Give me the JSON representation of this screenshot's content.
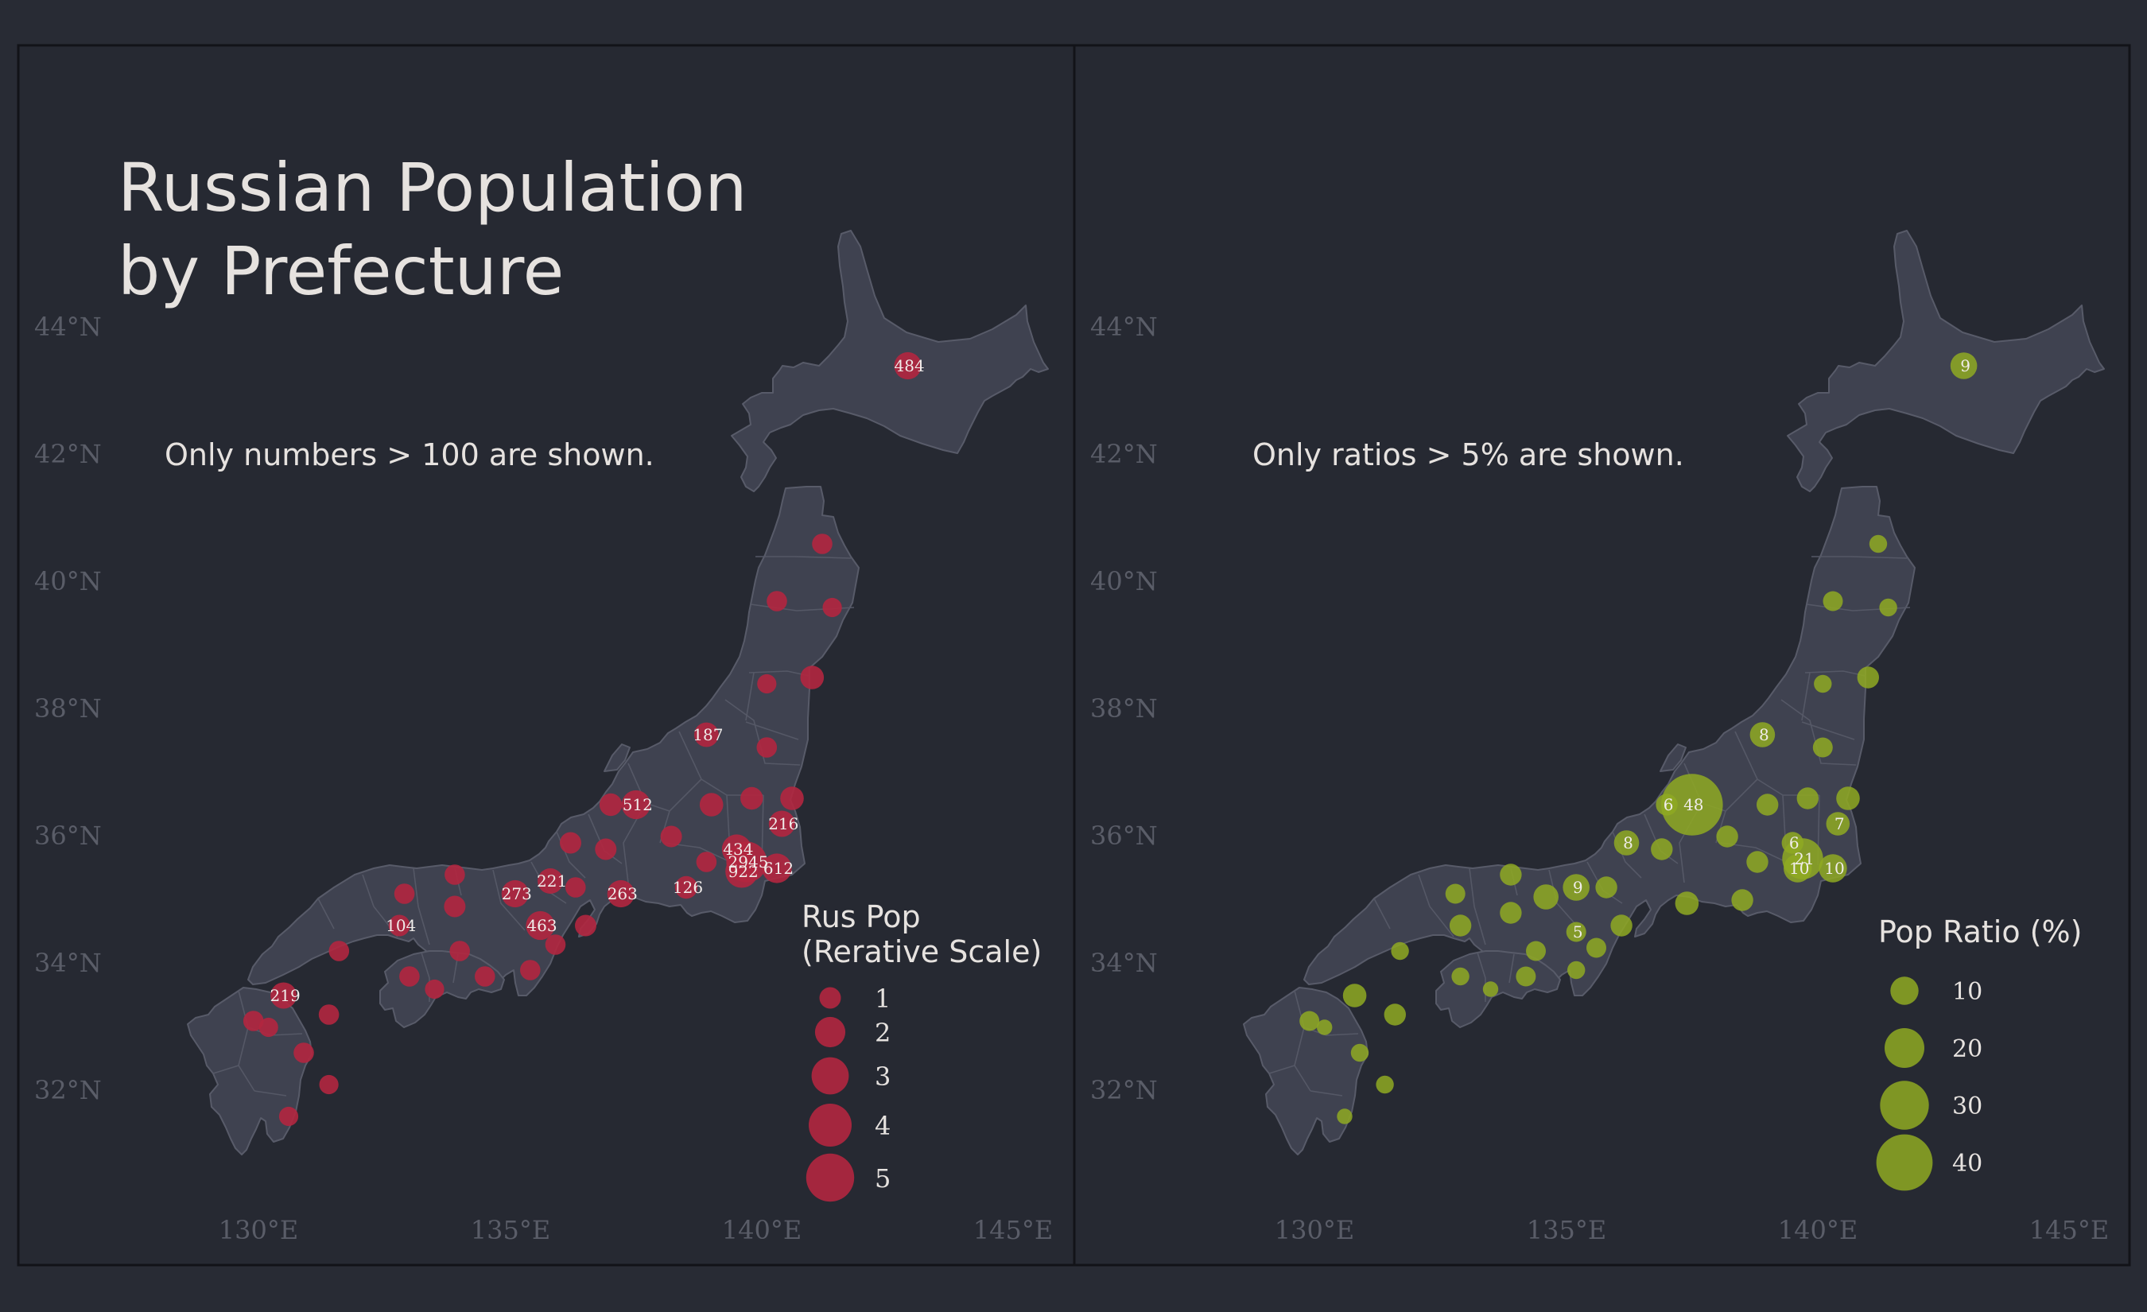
{
  "title_lines": [
    "Russian Population",
    "by Prefecture"
  ],
  "colors": {
    "background": "#282b34",
    "panel": "#262932",
    "land": "#3f4250",
    "red": "#b2263f",
    "green": "#8fa922",
    "tick": "#5a5d68",
    "text": "#e6e2df"
  },
  "axes": {
    "lat_ticks": [
      "44°N",
      "42°N",
      "40°N",
      "38°N",
      "36°N",
      "34°N",
      "32°N"
    ],
    "lon_ticks": [
      "130°E",
      "135°E",
      "140°E",
      "145°E"
    ]
  },
  "chart_data": [
    {
      "type": "scatter",
      "map": "Japan prefectures",
      "note": "Only numbers > 100 are shown.",
      "legend": {
        "title_lines": [
          "Rus Pop",
          "(Rerative Scale)"
        ],
        "items": [
          {
            "label": "1",
            "size": 1
          },
          {
            "label": "2",
            "size": 2
          },
          {
            "label": "3",
            "size": 3
          },
          {
            "label": "4",
            "size": 4
          },
          {
            "label": "5",
            "size": 5
          }
        ]
      },
      "points": [
        {
          "lon": 142.9,
          "lat": 43.4,
          "size": 1.6,
          "label": "484"
        },
        {
          "lon": 141.2,
          "lat": 40.6,
          "size": 0.9,
          "label": ""
        },
        {
          "lon": 140.3,
          "lat": 39.7,
          "size": 0.9,
          "label": ""
        },
        {
          "lon": 141.4,
          "lat": 39.6,
          "size": 0.8,
          "label": ""
        },
        {
          "lon": 141.0,
          "lat": 38.5,
          "size": 1.2,
          "label": ""
        },
        {
          "lon": 140.1,
          "lat": 38.4,
          "size": 0.8,
          "label": ""
        },
        {
          "lon": 140.1,
          "lat": 37.4,
          "size": 0.9,
          "label": ""
        },
        {
          "lon": 138.9,
          "lat": 37.6,
          "size": 1.3,
          "label": "187"
        },
        {
          "lon": 140.6,
          "lat": 36.6,
          "size": 1.2,
          "label": ""
        },
        {
          "lon": 139.8,
          "lat": 36.6,
          "size": 1.1,
          "label": ""
        },
        {
          "lon": 139.0,
          "lat": 36.5,
          "size": 1.2,
          "label": ""
        },
        {
          "lon": 137.0,
          "lat": 36.5,
          "size": 1.1,
          "label": ""
        },
        {
          "lon": 137.5,
          "lat": 36.5,
          "size": 1.8,
          "label": "512"
        },
        {
          "lon": 140.4,
          "lat": 36.2,
          "size": 1.5,
          "label": "216"
        },
        {
          "lon": 138.2,
          "lat": 36.0,
          "size": 1.0,
          "label": ""
        },
        {
          "lon": 136.2,
          "lat": 35.9,
          "size": 1.0,
          "label": ""
        },
        {
          "lon": 136.9,
          "lat": 35.8,
          "size": 1.0,
          "label": ""
        },
        {
          "lon": 139.5,
          "lat": 35.8,
          "size": 1.9,
          "label": "434"
        },
        {
          "lon": 139.7,
          "lat": 35.6,
          "size": 3.6,
          "label": "2945"
        },
        {
          "lon": 139.6,
          "lat": 35.45,
          "size": 2.3,
          "label": "922"
        },
        {
          "lon": 140.3,
          "lat": 35.5,
          "size": 1.9,
          "label": "612"
        },
        {
          "lon": 138.9,
          "lat": 35.6,
          "size": 0.9,
          "label": ""
        },
        {
          "lon": 138.5,
          "lat": 35.2,
          "size": 1.1,
          "label": "126"
        },
        {
          "lon": 137.2,
          "lat": 35.1,
          "size": 1.6,
          "label": "263"
        },
        {
          "lon": 135.8,
          "lat": 35.3,
          "size": 1.4,
          "label": "221"
        },
        {
          "lon": 135.1,
          "lat": 35.1,
          "size": 1.6,
          "label": "273"
        },
        {
          "lon": 136.3,
          "lat": 35.2,
          "size": 0.9,
          "label": ""
        },
        {
          "lon": 133.9,
          "lat": 35.4,
          "size": 0.9,
          "label": ""
        },
        {
          "lon": 132.9,
          "lat": 35.1,
          "size": 0.9,
          "label": ""
        },
        {
          "lon": 133.9,
          "lat": 34.9,
          "size": 1.0,
          "label": ""
        },
        {
          "lon": 135.6,
          "lat": 34.6,
          "size": 1.8,
          "label": "463"
        },
        {
          "lon": 136.5,
          "lat": 34.6,
          "size": 1.0,
          "label": ""
        },
        {
          "lon": 132.8,
          "lat": 34.6,
          "size": 1.0,
          "label": "104"
        },
        {
          "lon": 135.9,
          "lat": 34.3,
          "size": 0.9,
          "label": ""
        },
        {
          "lon": 131.6,
          "lat": 34.2,
          "size": 0.9,
          "label": ""
        },
        {
          "lon": 134.0,
          "lat": 34.2,
          "size": 0.9,
          "label": ""
        },
        {
          "lon": 133.0,
          "lat": 33.8,
          "size": 0.9,
          "label": ""
        },
        {
          "lon": 134.5,
          "lat": 33.8,
          "size": 0.9,
          "label": ""
        },
        {
          "lon": 133.5,
          "lat": 33.6,
          "size": 0.8,
          "label": ""
        },
        {
          "lon": 135.4,
          "lat": 33.9,
          "size": 0.9,
          "label": ""
        },
        {
          "lon": 130.5,
          "lat": 33.5,
          "size": 1.5,
          "label": "219"
        },
        {
          "lon": 131.4,
          "lat": 33.2,
          "size": 0.9,
          "label": ""
        },
        {
          "lon": 129.9,
          "lat": 33.1,
          "size": 0.9,
          "label": ""
        },
        {
          "lon": 130.2,
          "lat": 33.0,
          "size": 0.8,
          "label": ""
        },
        {
          "lon": 130.9,
          "lat": 32.6,
          "size": 0.9,
          "label": ""
        },
        {
          "lon": 131.4,
          "lat": 32.1,
          "size": 0.8,
          "label": ""
        },
        {
          "lon": 130.6,
          "lat": 31.6,
          "size": 0.8,
          "label": ""
        }
      ]
    },
    {
      "type": "scatter",
      "map": "Japan prefectures",
      "note": "Only ratios > 5% are shown.",
      "legend": {
        "title_lines": [
          "Pop Ratio (%)"
        ],
        "items": [
          {
            "label": "10",
            "size": 10
          },
          {
            "label": "20",
            "size": 20
          },
          {
            "label": "30",
            "size": 30
          },
          {
            "label": "40",
            "size": 40
          }
        ]
      },
      "points": [
        {
          "lon": 142.9,
          "lat": 43.4,
          "size": 9,
          "label": "9"
        },
        {
          "lon": 141.2,
          "lat": 40.6,
          "size": 4,
          "label": ""
        },
        {
          "lon": 140.3,
          "lat": 39.7,
          "size": 5,
          "label": ""
        },
        {
          "lon": 141.4,
          "lat": 39.6,
          "size": 4,
          "label": ""
        },
        {
          "lon": 141.0,
          "lat": 38.5,
          "size": 6,
          "label": ""
        },
        {
          "lon": 140.1,
          "lat": 38.4,
          "size": 4,
          "label": ""
        },
        {
          "lon": 140.1,
          "lat": 37.4,
          "size": 5,
          "label": ""
        },
        {
          "lon": 138.9,
          "lat": 37.6,
          "size": 8,
          "label": "8"
        },
        {
          "lon": 140.6,
          "lat": 36.6,
          "size": 7,
          "label": ""
        },
        {
          "lon": 139.8,
          "lat": 36.6,
          "size": 6,
          "label": ""
        },
        {
          "lon": 139.0,
          "lat": 36.5,
          "size": 6,
          "label": ""
        },
        {
          "lon": 137.0,
          "lat": 36.5,
          "size": 6,
          "label": "6"
        },
        {
          "lon": 137.5,
          "lat": 36.5,
          "size": 48,
          "label": "48"
        },
        {
          "lon": 140.4,
          "lat": 36.2,
          "size": 7,
          "label": "7"
        },
        {
          "lon": 138.2,
          "lat": 36.0,
          "size": 6,
          "label": ""
        },
        {
          "lon": 136.2,
          "lat": 35.9,
          "size": 8,
          "label": "8"
        },
        {
          "lon": 136.9,
          "lat": 35.8,
          "size": 6,
          "label": ""
        },
        {
          "lon": 139.5,
          "lat": 35.9,
          "size": 6,
          "label": "6"
        },
        {
          "lon": 139.7,
          "lat": 35.65,
          "size": 21,
          "label": "21"
        },
        {
          "lon": 139.6,
          "lat": 35.5,
          "size": 10,
          "label": "10"
        },
        {
          "lon": 140.3,
          "lat": 35.5,
          "size": 10,
          "label": "10"
        },
        {
          "lon": 138.8,
          "lat": 35.6,
          "size": 6,
          "label": ""
        },
        {
          "lon": 138.5,
          "lat": 35.0,
          "size": 6,
          "label": ""
        },
        {
          "lon": 137.4,
          "lat": 34.95,
          "size": 7,
          "label": ""
        },
        {
          "lon": 135.8,
          "lat": 35.2,
          "size": 6,
          "label": ""
        },
        {
          "lon": 135.2,
          "lat": 35.2,
          "size": 9,
          "label": "9"
        },
        {
          "lon": 134.6,
          "lat": 35.05,
          "size": 8,
          "label": ""
        },
        {
          "lon": 133.9,
          "lat": 35.4,
          "size": 6,
          "label": ""
        },
        {
          "lon": 132.8,
          "lat": 35.1,
          "size": 5,
          "label": ""
        },
        {
          "lon": 133.9,
          "lat": 34.8,
          "size": 6,
          "label": ""
        },
        {
          "lon": 135.2,
          "lat": 34.5,
          "size": 5,
          "label": "5"
        },
        {
          "lon": 136.1,
          "lat": 34.6,
          "size": 6,
          "label": ""
        },
        {
          "lon": 132.9,
          "lat": 34.6,
          "size": 6,
          "label": ""
        },
        {
          "lon": 135.6,
          "lat": 34.25,
          "size": 5,
          "label": ""
        },
        {
          "lon": 131.7,
          "lat": 34.2,
          "size": 4,
          "label": ""
        },
        {
          "lon": 134.4,
          "lat": 34.2,
          "size": 5,
          "label": ""
        },
        {
          "lon": 132.9,
          "lat": 33.8,
          "size": 4,
          "label": ""
        },
        {
          "lon": 134.2,
          "lat": 33.8,
          "size": 5,
          "label": ""
        },
        {
          "lon": 133.5,
          "lat": 33.6,
          "size": 3,
          "label": ""
        },
        {
          "lon": 135.2,
          "lat": 33.9,
          "size": 4,
          "label": ""
        },
        {
          "lon": 130.8,
          "lat": 33.5,
          "size": 7,
          "label": ""
        },
        {
          "lon": 131.6,
          "lat": 33.2,
          "size": 6,
          "label": ""
        },
        {
          "lon": 129.9,
          "lat": 33.1,
          "size": 5,
          "label": ""
        },
        {
          "lon": 130.2,
          "lat": 33.0,
          "size": 3,
          "label": ""
        },
        {
          "lon": 130.9,
          "lat": 32.6,
          "size": 4,
          "label": ""
        },
        {
          "lon": 131.4,
          "lat": 32.1,
          "size": 4,
          "label": ""
        },
        {
          "lon": 130.6,
          "lat": 31.6,
          "size": 3,
          "label": ""
        }
      ]
    }
  ]
}
